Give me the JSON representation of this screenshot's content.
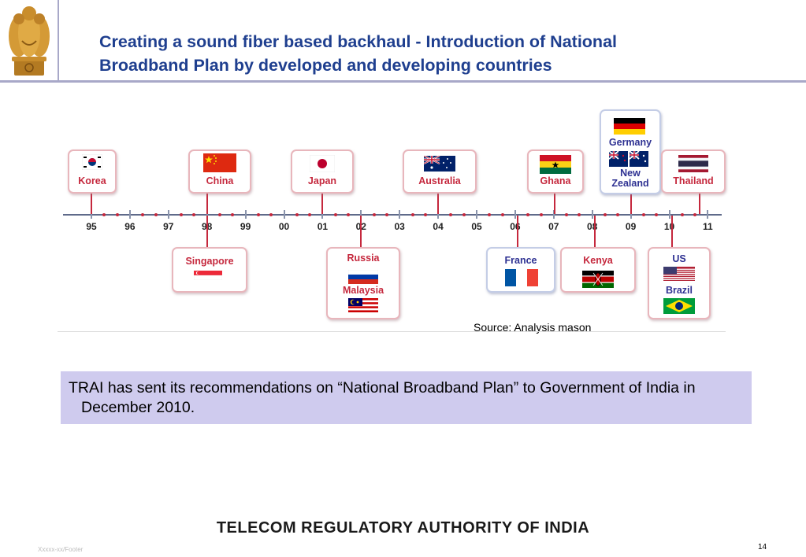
{
  "header": {
    "title_line1": "Creating a sound fiber based backhaul - Introduction of National",
    "title_line2": "Broadband Plan by developed and developing countries",
    "emblem_icon": "national-emblem-icon"
  },
  "timeline": {
    "years": [
      "95",
      "96",
      "97",
      "98",
      "99",
      "00",
      "01",
      "02",
      "03",
      "04",
      "05",
      "06",
      "07",
      "08",
      "09",
      "10",
      "11"
    ],
    "events": [
      {
        "year": "95",
        "countries": [
          "Korea"
        ]
      },
      {
        "year": "98",
        "countries": [
          "China"
        ]
      },
      {
        "year": "01",
        "countries": [
          "Japan"
        ]
      },
      {
        "year": "04",
        "countries": [
          "Australia"
        ]
      },
      {
        "year": "07",
        "countries": [
          "Ghana"
        ]
      },
      {
        "year": "09",
        "countries": [
          "Germany",
          "New Zealand"
        ]
      },
      {
        "year": "10",
        "countries": [
          "Thailand"
        ]
      },
      {
        "year": "98",
        "countries": [
          "Singapore"
        ]
      },
      {
        "year": "02",
        "countries": [
          "Russia",
          "Malaysia"
        ]
      },
      {
        "year": "06",
        "countries": [
          "France"
        ]
      },
      {
        "year": "08",
        "countries": [
          "Kenya"
        ]
      },
      {
        "year": "10",
        "countries": [
          "US",
          "Brazil"
        ]
      }
    ],
    "labels": {
      "korea": "Korea",
      "china": "China",
      "japan": "Japan",
      "australia": "Australia",
      "ghana": "Ghana",
      "germany": "Germany",
      "new_zealand": "New\nZealand",
      "thailand": "Thailand",
      "singapore": "Singapore",
      "russia": "Russia",
      "malaysia": "Malaysia",
      "france": "France",
      "kenya": "Kenya",
      "us": "US",
      "brazil": "Brazil"
    },
    "colors": {
      "card_border": "#e8b6bc",
      "label": "#c5283d",
      "axis": "#5f6a8a"
    }
  },
  "source": "Source: Analysis mason",
  "note": "TRAI has sent its recommendations on “National Broadband Plan” to Government of India in December 2010.",
  "footer": {
    "brand": "TELECOM REGULATORY AUTHORITY OF INDIA",
    "small": "Xxxxx-xx/Footer",
    "page": "14"
  }
}
